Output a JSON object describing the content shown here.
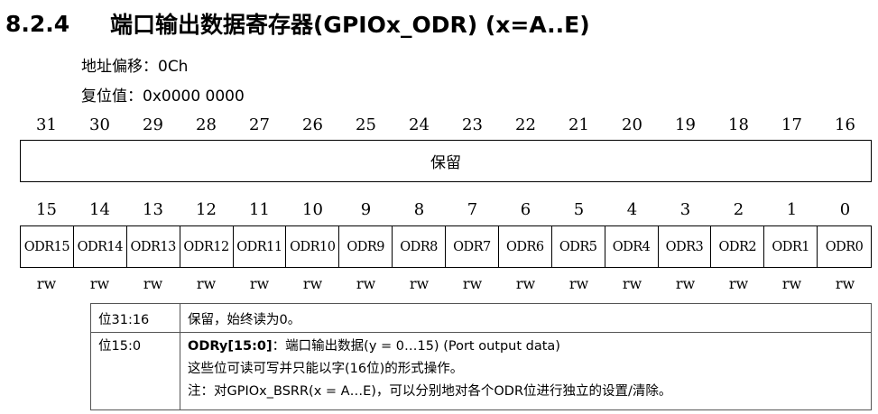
{
  "heading": {
    "number": "8.2.4",
    "title": "端口输出数据寄存器(GPIOx_ODR) (x=A..E)"
  },
  "address_offset": "地址偏移：0Ch",
  "reset_value": "复位值：0x0000 0000",
  "bits_high": [
    "31",
    "30",
    "29",
    "28",
    "27",
    "26",
    "25",
    "24",
    "23",
    "22",
    "21",
    "20",
    "19",
    "18",
    "17",
    "16"
  ],
  "reserved_label": "保留",
  "bits_low": [
    "15",
    "14",
    "13",
    "12",
    "11",
    "10",
    "9",
    "8",
    "7",
    "6",
    "5",
    "4",
    "3",
    "2",
    "1",
    "0"
  ],
  "fields": [
    "ODR15",
    "ODR14",
    "ODR13",
    "ODR12",
    "ODR11",
    "ODR10",
    "ODR9",
    "ODR8",
    "ODR7",
    "ODR6",
    "ODR5",
    "ODR4",
    "ODR3",
    "ODR2",
    "ODR1",
    "ODR0"
  ],
  "access": [
    "rw",
    "rw",
    "rw",
    "rw",
    "rw",
    "rw",
    "rw",
    "rw",
    "rw",
    "rw",
    "rw",
    "rw",
    "rw",
    "rw",
    "rw",
    "rw"
  ],
  "description": [
    {
      "bits": "位31:16",
      "text": "保留，始终读为0。"
    },
    {
      "bits": "位15:0",
      "field_name": "ODRy[15:0]",
      "field_desc": "：端口输出数据(y = 0…15) (Port output data)",
      "line2": "这些位可读可写并只能以字(16位)的形式操作。",
      "line3": "注：对GPIOx_BSRR(x = A…E)，可以分别地对各个ODR位进行独立的设置/清除。"
    }
  ]
}
